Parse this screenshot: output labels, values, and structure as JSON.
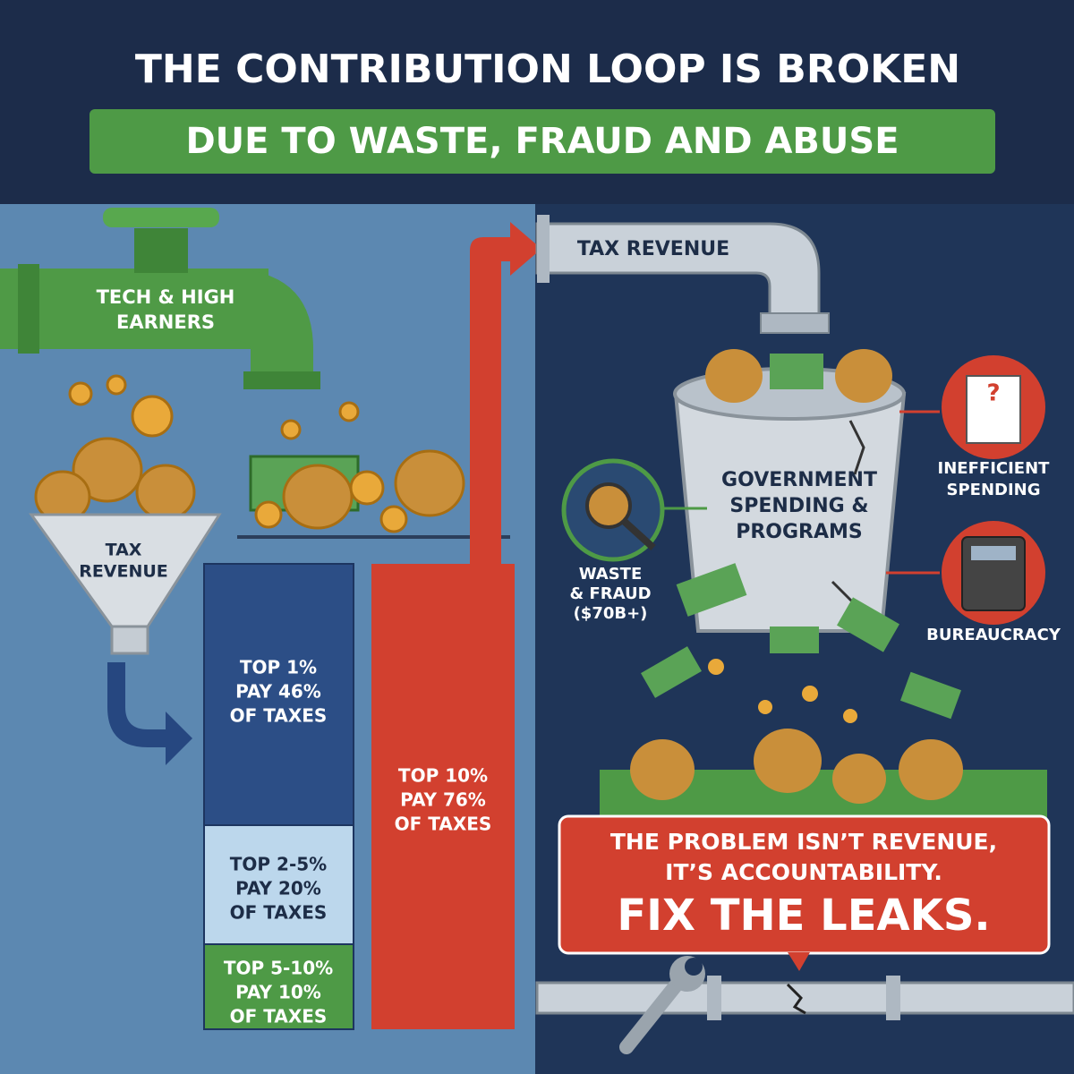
{
  "header": {
    "title": "THE CONTRIBUTION LOOP IS BROKEN",
    "subtitle": "DUE TO WASTE, FRAUD AND ABUSE"
  },
  "source": {
    "label": [
      "TECH & HIGH",
      "EARNERS"
    ]
  },
  "funnel": {
    "label": [
      "TAX",
      "REVENUE"
    ]
  },
  "brackets": [
    {
      "lines": [
        "TOP 1%",
        "PAY 46%",
        "OF TAXES"
      ]
    },
    {
      "lines": [
        "TOP 2-5%",
        "PAY 20%",
        "OF TAXES"
      ]
    },
    {
      "lines": [
        "TOP 5-10%",
        "PAY 10%",
        "OF TAXES"
      ]
    }
  ],
  "top10": {
    "lines": [
      "TOP 10%",
      "PAY 76%",
      "OF TAXES"
    ]
  },
  "pipe": {
    "label": "TAX REVENUE"
  },
  "bucket": {
    "label": [
      "GOVERNMENT",
      "SPENDING &",
      "PROGRAMS"
    ]
  },
  "leaks": [
    {
      "label": [
        "WASTE",
        "& FRAUD",
        "($70B+)"
      ]
    },
    {
      "label": [
        "INEFFICIENT",
        "SPENDING"
      ]
    },
    {
      "label": [
        "BUREAUCRACY"
      ]
    }
  ],
  "callout": {
    "lines": [
      "THE PROBLEM ISN’T REVENUE,",
      "IT’S ACCOUNTABILITY."
    ],
    "emphasis": "FIX THE LEAKS."
  }
}
